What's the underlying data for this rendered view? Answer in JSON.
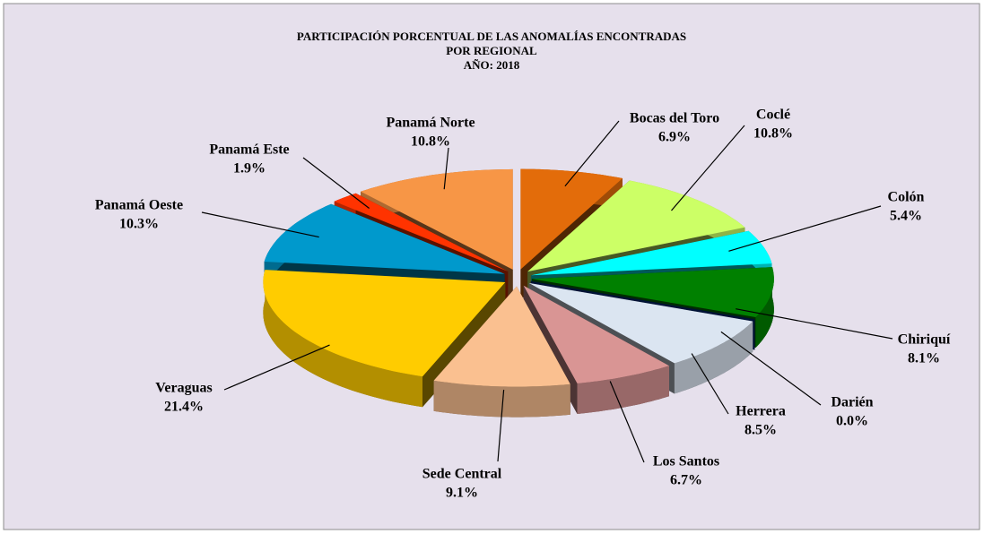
{
  "chart_data": {
    "type": "pie",
    "title": [
      "PARTICIPACIÓN PORCENTUAL DE LAS ANOMALÍAS  ENCONTRADAS",
      "POR REGIONAL",
      "AÑO: 2018"
    ],
    "categories": [
      "Bocas del Toro",
      "Coclé",
      "Colón",
      "Chiriquí",
      "Darién",
      "Herrera",
      "Los Santos",
      "Sede Central",
      "Veraguas",
      "Panamá Oeste",
      "Panamá Este",
      "Panamá Norte"
    ],
    "values": [
      6.9,
      10.8,
      5.4,
      8.1,
      0.0,
      8.5,
      6.7,
      9.1,
      21.4,
      10.3,
      1.9,
      10.8
    ],
    "value_labels": [
      "6.9%",
      "10.8%",
      "5.4%",
      "8.1%",
      "0.0%",
      "8.5%",
      "6.7%",
      "9.1%",
      "21.4%",
      "10.3%",
      "1.9%",
      "10.8%"
    ],
    "colors": [
      "#e36c0a",
      "#ccff66",
      "#00ffff",
      "#008000",
      "#003399",
      "#dbe5f1",
      "#d99594",
      "#fac090",
      "#ffcc00",
      "#0099cc",
      "#ff3300",
      "#f79646"
    ]
  }
}
